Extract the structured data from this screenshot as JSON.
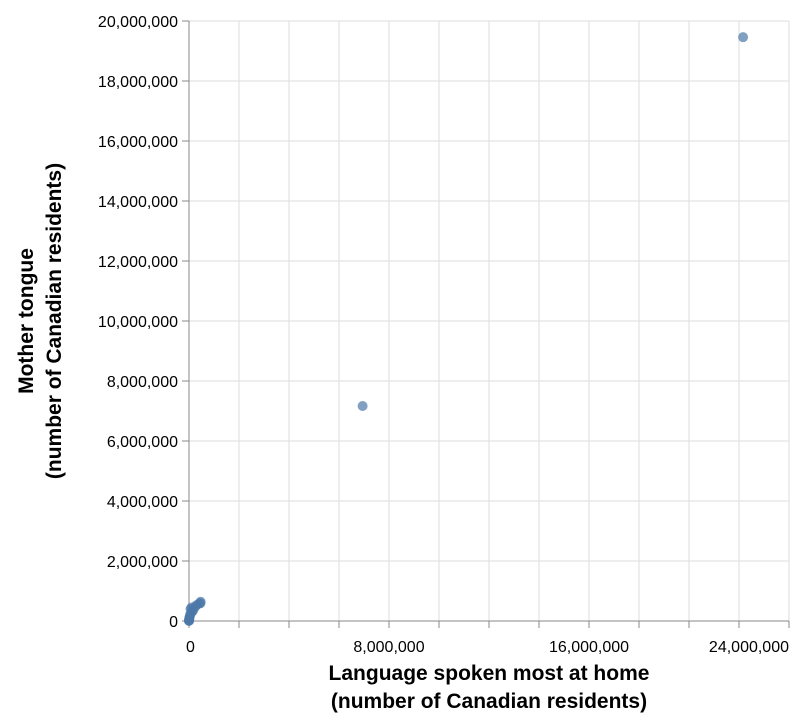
{
  "chart_data": {
    "type": "scatter",
    "title": "",
    "xlabel": [
      "Language spoken most at home",
      "(number of Canadian residents)"
    ],
    "ylabel": [
      "Mother tongue",
      "(number of Canadian residents)"
    ],
    "xlim": [
      0,
      24000000
    ],
    "ylim": [
      0,
      20000000
    ],
    "x_ticks": [
      0,
      2000000,
      4000000,
      6000000,
      8000000,
      10000000,
      12000000,
      14000000,
      16000000,
      18000000,
      20000000,
      22000000,
      24000000
    ],
    "x_tick_labels": [
      {
        "value": 0,
        "label": "0"
      },
      {
        "value": 8000000,
        "label": "8,000,000"
      },
      {
        "value": 16000000,
        "label": "16,000,000"
      },
      {
        "value": 24000000,
        "label": "24,000,000"
      }
    ],
    "y_ticks": [
      {
        "value": 0,
        "label": "0"
      },
      {
        "value": 2000000,
        "label": "2,000,000"
      },
      {
        "value": 4000000,
        "label": "4,000,000"
      },
      {
        "value": 6000000,
        "label": "6,000,000"
      },
      {
        "value": 8000000,
        "label": "8,000,000"
      },
      {
        "value": 10000000,
        "label": "10,000,000"
      },
      {
        "value": 12000000,
        "label": "12,000,000"
      },
      {
        "value": 14000000,
        "label": "14,000,000"
      },
      {
        "value": 16000000,
        "label": "16,000,000"
      },
      {
        "value": 18000000,
        "label": "18,000,000"
      },
      {
        "value": 20000000,
        "label": "20,000,000"
      }
    ],
    "grid": true,
    "point_color": "#4c78a8",
    "points": [
      {
        "x": 22162865,
        "y": 19460850
      },
      {
        "x": 6943800,
        "y": 7166700
      },
      {
        "x": 462890,
        "y": 641100
      },
      {
        "x": 459700,
        "y": 594000
      },
      {
        "x": 414000,
        "y": 580000
      },
      {
        "x": 300000,
        "y": 530000
      },
      {
        "x": 250000,
        "y": 480000
      },
      {
        "x": 100000,
        "y": 450000
      },
      {
        "x": 60000,
        "y": 400000
      },
      {
        "x": 180000,
        "y": 380000
      },
      {
        "x": 140000,
        "y": 320000
      },
      {
        "x": 90000,
        "y": 280000
      },
      {
        "x": 50000,
        "y": 220000
      },
      {
        "x": 30000,
        "y": 160000
      },
      {
        "x": 20000,
        "y": 120000
      },
      {
        "x": 10000,
        "y": 80000
      },
      {
        "x": 5000,
        "y": 40000
      },
      {
        "x": 2000,
        "y": 20000
      },
      {
        "x": 1000,
        "y": 10000
      },
      {
        "x": 500,
        "y": 5000
      }
    ]
  }
}
